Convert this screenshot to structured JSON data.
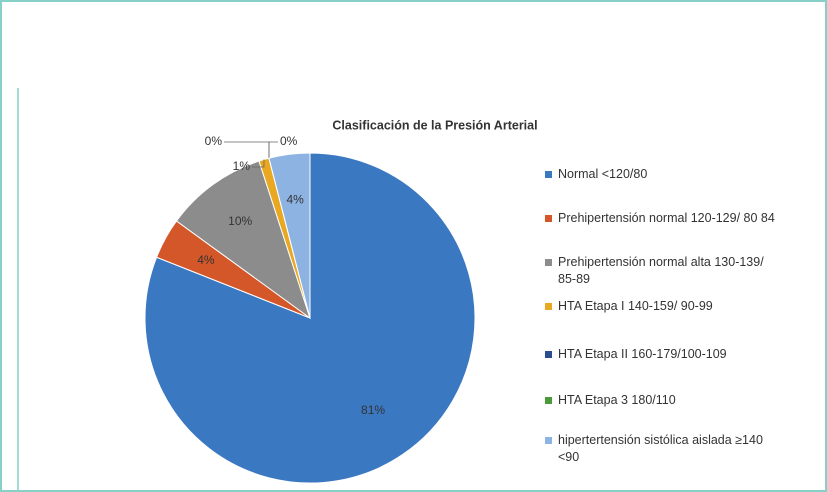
{
  "chart_data": {
    "type": "pie",
    "title": "Clasificación de la Presión Arterial",
    "categories": [
      "Normal <120/80",
      "Prehipertensión normal 120-129/ 80 84",
      "Prehipertensión normal alta 130-139/ 85-89",
      "HTA Etapa I 140-159/ 90-99",
      "HTA Etapa II 160-179/100-109",
      "HTA Etapa 3 180/110",
      "hipertertensión sistólica aislada ≥140 <90"
    ],
    "values": [
      81,
      4,
      10,
      1,
      0,
      0,
      4
    ],
    "value_labels": [
      "81%",
      "4%",
      "10%",
      "1%",
      "0%",
      "0%",
      "4%"
    ],
    "colors": [
      "#3b78c2",
      "#d4572a",
      "#8c8c8c",
      "#e8a822",
      "#2a4d8f",
      "#4a9a3a",
      "#8db3e2"
    ],
    "legend": "right"
  }
}
